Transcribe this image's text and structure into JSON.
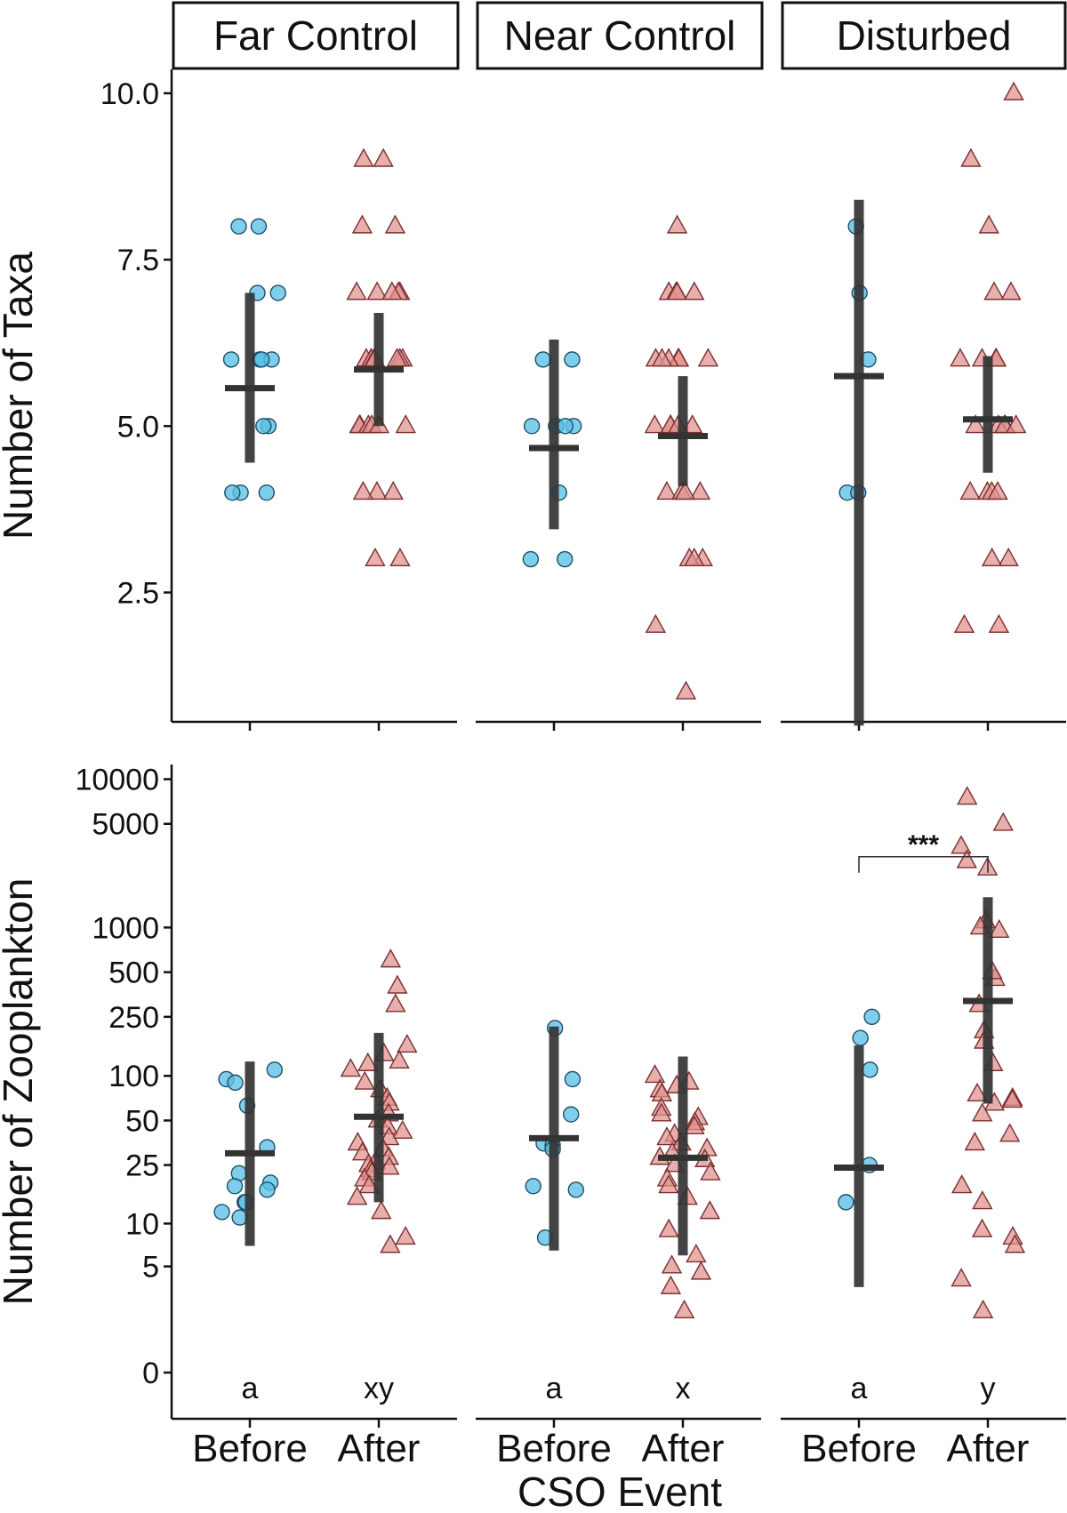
{
  "chart_data": {
    "type": "scatter",
    "panels": [
      "Far Control",
      "Near Control",
      "Disturbed"
    ],
    "xlabel": "CSO Event",
    "categories": [
      "Before",
      "After"
    ],
    "colors": {
      "Before": "#5bc0e6",
      "After": "#e0908e",
      "summary": "#333333"
    },
    "rows": [
      {
        "ylabel": "Number of Taxa",
        "scale": "linear",
        "yticks": [
          2.5,
          5.0,
          7.5,
          10.0
        ],
        "ytick_labels": [
          "2.5",
          "5.0",
          "7.5",
          "10.0"
        ],
        "ylim": [
          0.5,
          10.5
        ],
        "series": [
          {
            "panel": "Far Control",
            "group": "Before",
            "values": [
              8,
              8,
              7,
              7,
              6,
              6,
              6,
              6,
              6,
              5,
              5,
              4,
              4,
              4
            ],
            "mean": 5.57,
            "ci": [
              4.45,
              7.0
            ]
          },
          {
            "panel": "Far Control",
            "group": "After",
            "values": [
              9,
              9,
              8,
              8,
              7,
              7,
              7,
              7,
              7,
              6,
              6,
              6,
              6,
              6,
              6,
              6,
              6,
              5,
              5,
              5,
              5,
              5,
              5,
              4,
              4,
              4,
              3,
              3
            ],
            "mean": 5.85,
            "ci": [
              5.0,
              6.7
            ]
          },
          {
            "panel": "Near Control",
            "group": "Before",
            "values": [
              6,
              6,
              5,
              5,
              5,
              5,
              4,
              3,
              3
            ],
            "mean": 4.67,
            "ci": [
              3.45,
              6.3
            ]
          },
          {
            "panel": "Near Control",
            "group": "After",
            "values": [
              8,
              7,
              7,
              7,
              7,
              6,
              6,
              6,
              6,
              6,
              6,
              5,
              5,
              5,
              5,
              5,
              4,
              4,
              4,
              4,
              3,
              3,
              3,
              2,
              1
            ],
            "mean": 4.85,
            "ci": [
              4.1,
              5.75
            ]
          },
          {
            "panel": "Disturbed",
            "group": "Before",
            "values": [
              8,
              7,
              6,
              4,
              4
            ],
            "mean": 5.75,
            "ci": [
              0.5,
              8.4
            ]
          },
          {
            "panel": "Disturbed",
            "group": "After",
            "values": [
              10,
              9,
              8,
              7,
              7,
              6,
              6,
              6,
              6,
              5,
              5,
              5,
              5,
              5,
              4,
              4,
              4,
              4,
              3,
              3,
              2,
              2
            ],
            "mean": 5.1,
            "ci": [
              4.3,
              6.05
            ]
          }
        ]
      },
      {
        "ylabel": "Number of Zooplankton",
        "scale": "pseudo-log",
        "yticks": [
          0,
          5,
          10,
          25,
          50,
          100,
          250,
          500,
          1000,
          5000,
          10000
        ],
        "ytick_labels": [
          "0",
          "5",
          "10",
          "25",
          "50",
          "100",
          "250",
          "500",
          "1000",
          "5000",
          "10000"
        ],
        "ylim": [
          0,
          10000
        ],
        "series": [
          {
            "panel": "Far Control",
            "group": "Before",
            "values": [
              110,
              95,
              90,
              63,
              33,
              22,
              19,
              18,
              17,
              14,
              14,
              12,
              11
            ],
            "mean": 30,
            "ci": [
              7,
              125
            ]
          },
          {
            "panel": "Far Control",
            "group": "After",
            "values": [
              600,
              400,
              300,
              160,
              140,
              125,
              120,
              110,
              90,
              80,
              70,
              65,
              55,
              50,
              45,
              42,
              38,
              35,
              32,
              30,
              28,
              26,
              25,
              24,
              23,
              22,
              20,
              18,
              15,
              12,
              8,
              7
            ],
            "mean": 53,
            "ci": [
              14,
              195
            ]
          },
          {
            "panel": "Near Control",
            "group": "Before",
            "values": [
              210,
              95,
              55,
              35,
              34,
              32,
              18,
              17,
              8
            ],
            "mean": 38,
            "ci": [
              6.5,
              215
            ]
          },
          {
            "panel": "Near Control",
            "group": "After",
            "values": [
              100,
              90,
              85,
              80,
              75,
              60,
              55,
              52,
              48,
              45,
              40,
              38,
              35,
              32,
              30,
              28,
              27,
              25,
              22,
              20,
              18,
              15,
              12,
              9,
              6,
              5,
              4.5,
              3.5,
              2.2
            ],
            "mean": 28,
            "ci": [
              6,
              135
            ]
          },
          {
            "panel": "Disturbed",
            "group": "Before",
            "values": [
              250,
              180,
              110,
              25,
              14
            ],
            "mean": 24,
            "ci": [
              3.5,
              160
            ]
          },
          {
            "panel": "Disturbed",
            "group": "After",
            "values": [
              7500,
              5000,
              3500,
              2800,
              2500,
              1100,
              1000,
              950,
              450,
              500,
              300,
              200,
              170,
              120,
              75,
              70,
              68,
              65,
              55,
              40,
              35,
              18,
              14,
              9,
              8,
              7,
              4,
              2.2
            ],
            "mean": 320,
            "ci": [
              65,
              1600
            ]
          }
        ],
        "group_letters": [
          {
            "panel": "Far Control",
            "group": "Before",
            "text": "a"
          },
          {
            "panel": "Far Control",
            "group": "After",
            "text": "xy"
          },
          {
            "panel": "Near Control",
            "group": "Before",
            "text": "a"
          },
          {
            "panel": "Near Control",
            "group": "After",
            "text": "x"
          },
          {
            "panel": "Disturbed",
            "group": "Before",
            "text": "a"
          },
          {
            "panel": "Disturbed",
            "group": "After",
            "text": "y"
          }
        ],
        "significance": {
          "panel": "Disturbed",
          "from": "Before",
          "to": "After",
          "label": "***",
          "y": 3000
        }
      }
    ]
  }
}
